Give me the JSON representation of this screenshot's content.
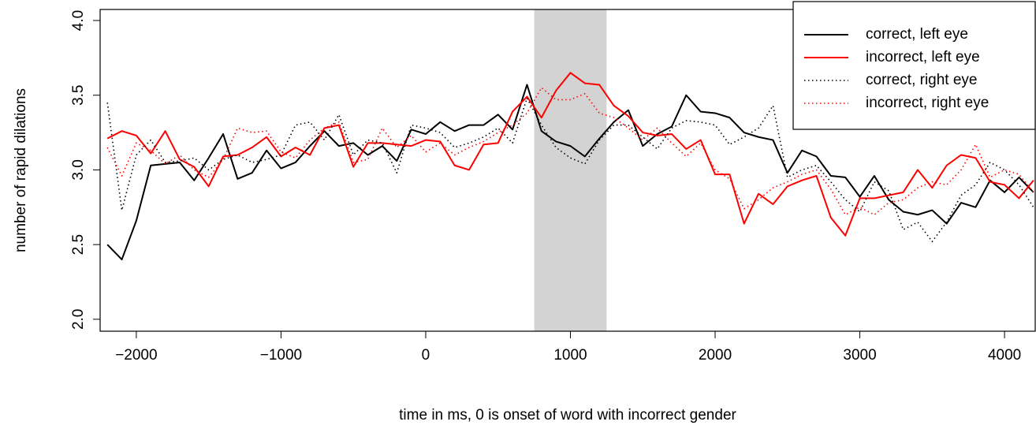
{
  "chart_data": {
    "type": "line",
    "x_label": "time in ms, 0 is onset of word with incorrect gender",
    "y_label": "number of rapid dilations",
    "x": [
      -2200,
      -2100,
      -2000,
      -1900,
      -1800,
      -1700,
      -1600,
      -1500,
      -1400,
      -1300,
      -1200,
      -1100,
      -1000,
      -900,
      -800,
      -700,
      -600,
      -500,
      -400,
      -300,
      -200,
      -100,
      0,
      100,
      200,
      300,
      400,
      500,
      600,
      700,
      800,
      900,
      1000,
      1100,
      1200,
      1300,
      1400,
      1500,
      1600,
      1700,
      1800,
      1900,
      2000,
      2100,
      2200,
      2300,
      2400,
      2500,
      2600,
      2700,
      2800,
      2900,
      3000,
      3100,
      3200,
      3300,
      3400,
      3500,
      3600,
      3700,
      3800,
      3900,
      4000,
      4100,
      4200
    ],
    "series": [
      {
        "name": "correct, left eye",
        "color": "#000000",
        "linestyle": "solid",
        "values": [
          2.5,
          2.4,
          2.66,
          3.03,
          3.04,
          3.05,
          2.93,
          3.08,
          3.24,
          2.94,
          2.98,
          3.13,
          3.01,
          3.05,
          3.16,
          3.26,
          3.16,
          3.18,
          3.1,
          3.16,
          3.06,
          3.27,
          3.24,
          3.32,
          3.26,
          3.3,
          3.3,
          3.37,
          3.27,
          3.57,
          3.26,
          3.19,
          3.16,
          3.09,
          3.21,
          3.32,
          3.4,
          3.16,
          3.24,
          3.29,
          3.5,
          3.39,
          3.38,
          3.35,
          3.25,
          3.22,
          3.2,
          2.98,
          3.13,
          3.09,
          2.96,
          2.95,
          2.82,
          2.96,
          2.8,
          2.72,
          2.7,
          2.73,
          2.64,
          2.78,
          2.75,
          2.93,
          2.85,
          2.95,
          2.85
        ]
      },
      {
        "name": "incorrect, left eye",
        "color": "#ff0000",
        "linestyle": "solid",
        "values": [
          3.21,
          3.26,
          3.23,
          3.11,
          3.26,
          3.07,
          3.02,
          2.89,
          3.09,
          3.1,
          3.15,
          3.22,
          3.09,
          3.15,
          3.1,
          3.28,
          3.3,
          3.02,
          3.18,
          3.18,
          3.17,
          3.16,
          3.2,
          3.19,
          3.03,
          3.0,
          3.17,
          3.18,
          3.39,
          3.49,
          3.35,
          3.53,
          3.65,
          3.58,
          3.57,
          3.43,
          3.36,
          3.25,
          3.23,
          3.24,
          3.14,
          3.2,
          2.97,
          2.97,
          2.64,
          2.84,
          2.77,
          2.89,
          2.93,
          2.96,
          2.68,
          2.56,
          2.81,
          2.81,
          2.83,
          2.85,
          3.0,
          2.88,
          3.03,
          3.1,
          3.08,
          2.92,
          2.9,
          2.81,
          2.93
        ]
      },
      {
        "name": "correct, right eye",
        "color": "#000000",
        "linestyle": "dotted",
        "values": [
          3.45,
          2.73,
          3.1,
          3.2,
          3.05,
          3.06,
          3.08,
          3.0,
          3.07,
          3.1,
          3.05,
          3.07,
          3.1,
          3.3,
          3.32,
          3.2,
          3.37,
          3.1,
          3.2,
          3.18,
          2.98,
          3.3,
          3.28,
          3.25,
          3.15,
          3.18,
          3.22,
          3.28,
          3.18,
          3.48,
          3.3,
          3.15,
          3.08,
          3.04,
          3.2,
          3.3,
          3.3,
          3.22,
          3.14,
          3.28,
          3.33,
          3.32,
          3.3,
          3.17,
          3.22,
          3.28,
          3.43,
          2.95,
          3.0,
          3.03,
          2.92,
          2.8,
          2.72,
          2.92,
          2.86,
          2.6,
          2.65,
          2.52,
          2.65,
          2.83,
          2.9,
          3.05,
          3.0,
          2.9,
          2.75
        ]
      },
      {
        "name": "incorrect, right eye",
        "color": "#ff0000",
        "linestyle": "dotted",
        "values": [
          3.15,
          2.96,
          3.18,
          3.13,
          3.04,
          3.1,
          3.0,
          2.95,
          3.07,
          3.28,
          3.25,
          3.26,
          3.12,
          3.08,
          3.2,
          3.28,
          3.32,
          3.05,
          3.07,
          3.28,
          3.15,
          3.23,
          3.12,
          3.18,
          3.1,
          3.15,
          3.19,
          3.25,
          3.3,
          3.38,
          3.55,
          3.47,
          3.47,
          3.51,
          3.38,
          3.35,
          3.28,
          3.2,
          3.28,
          3.18,
          3.09,
          3.18,
          3.0,
          2.94,
          2.74,
          2.8,
          2.88,
          2.92,
          2.97,
          3.0,
          2.87,
          2.7,
          2.75,
          2.7,
          2.78,
          2.8,
          2.88,
          2.92,
          2.9,
          3.0,
          3.17,
          2.95,
          3.0,
          2.97,
          2.85
        ]
      }
    ],
    "shaded_region": [
      750,
      1250
    ],
    "shaded_color": "#d3d3d3",
    "xlim": [
      -2250,
      4212
    ],
    "ylim": [
      1.92,
      4.074
    ],
    "xticks": [
      {
        "value": -2000,
        "label": "−2000"
      },
      {
        "value": -1000,
        "label": "−1000"
      },
      0,
      1000,
      2000,
      3000,
      4000
    ],
    "yticks": [
      {
        "value": 2,
        "label": "2.0"
      },
      {
        "value": 2.5,
        "label": "2.5"
      },
      {
        "value": 3,
        "label": "3.0"
      },
      {
        "value": 3.5,
        "label": "3.5"
      },
      {
        "value": 4,
        "label": "4.0"
      }
    ],
    "legend": "top-right"
  }
}
